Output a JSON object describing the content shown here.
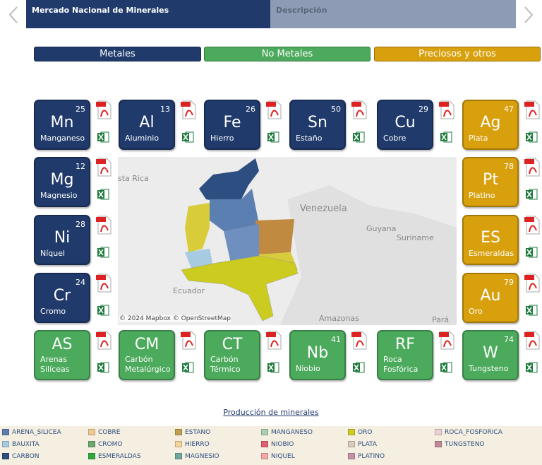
{
  "nav": {
    "tabs": [
      "Mercado Nacional de Minerales",
      "Descripción"
    ]
  },
  "categories": [
    {
      "label": "Metales",
      "color": "#1f3a6b"
    },
    {
      "label": "No Metales",
      "color": "#4caa5c"
    },
    {
      "label": "Preciosos y otros",
      "color": "#d9a00e"
    }
  ],
  "tiles": [
    {
      "symbol": "Mn",
      "number": 25,
      "name": [
        "Manganeso"
      ],
      "color": "#1f3a6b"
    },
    {
      "symbol": "Al",
      "number": 13,
      "name": [
        "Aluminio"
      ],
      "color": "#1f3a6b"
    },
    {
      "symbol": "Fe",
      "number": 26,
      "name": [
        "Hierro"
      ],
      "color": "#1f3a6b"
    },
    {
      "symbol": "Sn",
      "number": 50,
      "name": [
        "Estaño"
      ],
      "color": "#1f3a6b"
    },
    {
      "symbol": "Cu",
      "number": 29,
      "name": [
        "Cobre"
      ],
      "color": "#1f3a6b"
    },
    {
      "symbol": "Ag",
      "number": 47,
      "name": [
        "Plata"
      ],
      "color": "#d9a00e"
    },
    {
      "symbol": "Mg",
      "number": 12,
      "name": [
        "Magnesio"
      ],
      "color": "#1f3a6b"
    },
    {
      "symbol": "Pt",
      "number": 78,
      "name": [
        "Platino"
      ],
      "color": "#d9a00e"
    },
    {
      "symbol": "Ni",
      "number": 28,
      "name": [
        "Níquel"
      ],
      "color": "#1f3a6b"
    },
    {
      "symbol": "ES",
      "name": [
        "Esmeraldas"
      ],
      "color": "#d9a00e"
    },
    {
      "symbol": "Cr",
      "number": 24,
      "name": [
        "Cromo"
      ],
      "color": "#1f3a6b"
    },
    {
      "symbol": "Au",
      "number": 79,
      "name": [
        "Oro"
      ],
      "color": "#d9a00e"
    },
    {
      "symbol": "AS",
      "name": [
        "Arenas",
        "Silíceas"
      ],
      "color": "#4caa5c"
    },
    {
      "symbol": "CM",
      "name": [
        "Carbón",
        "Metalúrgico"
      ],
      "color": "#4caa5c"
    },
    {
      "symbol": "CT",
      "name": [
        "Carbón",
        "Térmico"
      ],
      "color": "#4caa5c"
    },
    {
      "symbol": "Nb",
      "number": 41,
      "name": [
        "Niobio"
      ],
      "color": "#4caa5c"
    },
    {
      "symbol": "RF",
      "name": [
        "Roca",
        "Fosfórica"
      ],
      "color": "#4caa5c"
    },
    {
      "symbol": "W",
      "number": 74,
      "name": [
        "Tungsteno"
      ],
      "color": "#4caa5c"
    }
  ],
  "map": {
    "labels": [
      "sta Rica",
      "Venezuela",
      "Guyana",
      "Suriname",
      "Ecuador",
      "Amazonas",
      "Pará"
    ],
    "attribution": "© 2024 Mapbox © OpenStreetMap"
  },
  "legend": {
    "title": "Producción de minerales",
    "items": [
      {
        "label": "ARENA_SILICEA",
        "color": "#5b7fb0"
      },
      {
        "label": "BAUXITA",
        "color": "#a7cbe0"
      },
      {
        "label": "CARBON",
        "color": "#2d4e80"
      },
      {
        "label": "COBRE",
        "color": "#f0c890"
      },
      {
        "label": "CROMO",
        "color": "#6aa870"
      },
      {
        "label": "ESMERALDAS",
        "color": "#2fa83f"
      },
      {
        "label": "ESTANO",
        "color": "#c0a050"
      },
      {
        "label": "HIERRO",
        "color": "#f3d49a"
      },
      {
        "label": "MAGNESIO",
        "color": "#70a8a0"
      },
      {
        "label": "MANGANESO",
        "color": "#a7cfae"
      },
      {
        "label": "NIOBIO",
        "color": "#e06070"
      },
      {
        "label": "NIQUEL",
        "color": "#f4a8a8"
      },
      {
        "label": "ORO",
        "color": "#cccc20"
      },
      {
        "label": "PLATA",
        "color": "#d8ccbc"
      },
      {
        "label": "PLATINO",
        "color": "#c890a8"
      },
      {
        "label": "ROCA_FOSFORICA",
        "color": "#ecd0d4"
      },
      {
        "label": "TUNGSTENO",
        "color": "#c08898"
      }
    ]
  }
}
